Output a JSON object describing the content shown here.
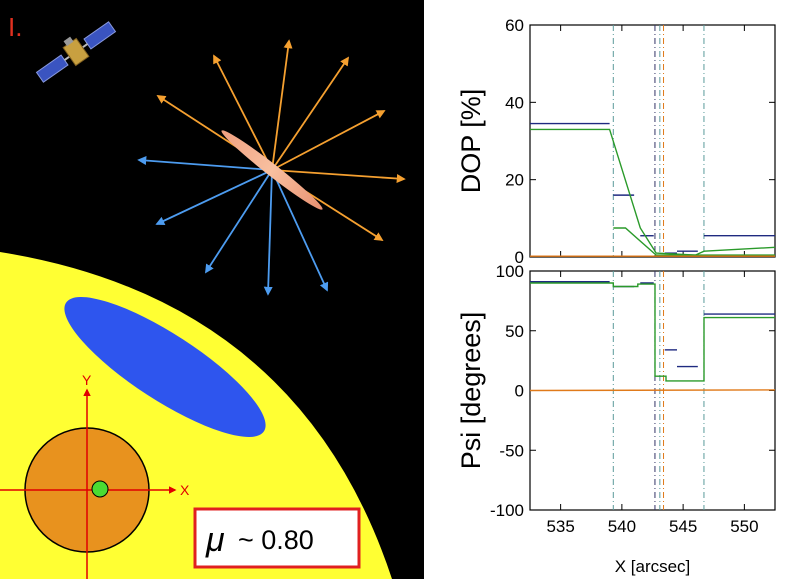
{
  "panel": {
    "label": "I.",
    "mu_symbol": "μ",
    "mu_text": "~ 0.80",
    "axis_x_label": "X",
    "axis_y_label": "Y"
  },
  "colors": {
    "background": "#000000",
    "sun": "#ffff33",
    "spot": "#2e55ee",
    "arrow_orange": "#f5a030",
    "arrow_blue": "#4d9cf0",
    "disk": "#e8921e",
    "green_dot": "#4bdb32",
    "axis_red": "#e00000",
    "frame_red": "#e02020",
    "series_navy": "#1f2a80",
    "series_green": "#2a9a2a",
    "series_orange": "#e07a1a"
  },
  "chart_data": [
    {
      "type": "line",
      "xlabel": "",
      "ylabel": "DOP [%]",
      "xlim": [
        532.5,
        552.5
      ],
      "ylim": [
        0,
        60
      ],
      "yticks": [
        "0",
        "20",
        "40",
        "60"
      ],
      "vlines": [
        539.3,
        542.7,
        543.1,
        543.4,
        546.7
      ],
      "series": [
        {
          "type": "step",
          "color": "#1f2a80",
          "segments": [
            [
              532.5,
              539,
              34.5
            ],
            [
              539.3,
              541,
              16
            ],
            [
              541.5,
              542.6,
              5.5
            ],
            [
              543.5,
              544.5,
              1.0
            ],
            [
              544.5,
              546.2,
              1.5
            ],
            [
              546.7,
              552.5,
              5.5
            ]
          ]
        },
        {
          "type": "polyline",
          "color": "#2a9a2a",
          "points": [
            [
              532.5,
              33
            ],
            [
              539,
              33
            ],
            [
              541.5,
              7.5
            ],
            [
              542.8,
              1
            ],
            [
              546,
              0.5
            ],
            [
              546.7,
              1.5
            ],
            [
              552.5,
              2.5
            ]
          ]
        },
        {
          "type": "polyline",
          "color": "#2a9a2a",
          "points": [
            [
              539.3,
              7.5
            ],
            [
              540.3,
              7.5
            ],
            [
              542.8,
              0.5
            ],
            [
              552.5,
              0.5
            ]
          ]
        },
        {
          "type": "polyline",
          "color": "#e07a1a",
          "points": [
            [
              532.5,
              0.2
            ],
            [
              552.5,
              0.2
            ]
          ]
        }
      ]
    },
    {
      "type": "line",
      "xlabel": "X [arcsec]",
      "ylabel": "Psi [degrees]",
      "xlim": [
        532.5,
        552.5
      ],
      "ylim": [
        -100,
        100
      ],
      "xticks": [
        "535",
        "540",
        "545",
        "550"
      ],
      "yticks": [
        "-100",
        "-50",
        "0",
        "50",
        "100"
      ],
      "vlines": [
        539.3,
        542.7,
        543.1,
        543.4,
        546.7
      ],
      "series": [
        {
          "type": "step",
          "color": "#1f2a80",
          "segments": [
            [
              532.5,
              539,
              91
            ],
            [
              539.3,
              541,
              87
            ],
            [
              541.5,
              542.6,
              90
            ],
            [
              543.5,
              544.5,
              34
            ],
            [
              544.5,
              546.2,
              20
            ],
            [
              546.7,
              552.5,
              64
            ]
          ]
        },
        {
          "type": "polyline",
          "color": "#2a9a2a",
          "points": [
            [
              532.5,
              90
            ],
            [
              539.3,
              90
            ],
            [
              539.3,
              87
            ],
            [
              541.3,
              87
            ],
            [
              541.3,
              89
            ],
            [
              542.7,
              89
            ],
            [
              542.7,
              12
            ],
            [
              543.6,
              12
            ],
            [
              543.6,
              8
            ],
            [
              546.7,
              8
            ],
            [
              546.7,
              61
            ],
            [
              552.5,
              61
            ]
          ]
        },
        {
          "type": "polyline",
          "color": "#e07a1a",
          "points": [
            [
              532.5,
              0
            ],
            [
              552.5,
              0.5
            ]
          ]
        }
      ]
    }
  ]
}
